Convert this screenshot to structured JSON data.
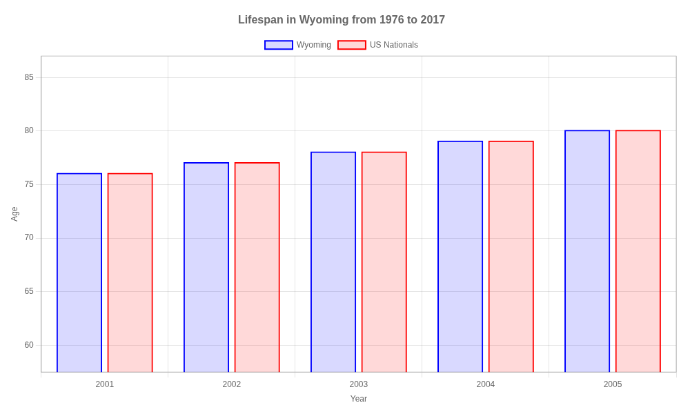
{
  "chart_data": {
    "type": "bar",
    "title": "Lifespan in Wyoming from 1976 to 2017",
    "xlabel": "Year",
    "ylabel": "Age",
    "categories": [
      "2001",
      "2002",
      "2003",
      "2004",
      "2005"
    ],
    "series": [
      {
        "name": "Wyoming",
        "color": "#0000ff",
        "values": [
          76.1,
          77.1,
          78.1,
          79.1,
          80.1
        ]
      },
      {
        "name": "US Nationals",
        "color": "#ff0000",
        "values": [
          76.1,
          77.1,
          78.1,
          79.1,
          80.1
        ]
      }
    ],
    "ylim": [
      57.5,
      87
    ],
    "yticks": [
      60,
      65,
      70,
      75,
      80,
      85
    ],
    "grid": true,
    "legend": "top"
  }
}
